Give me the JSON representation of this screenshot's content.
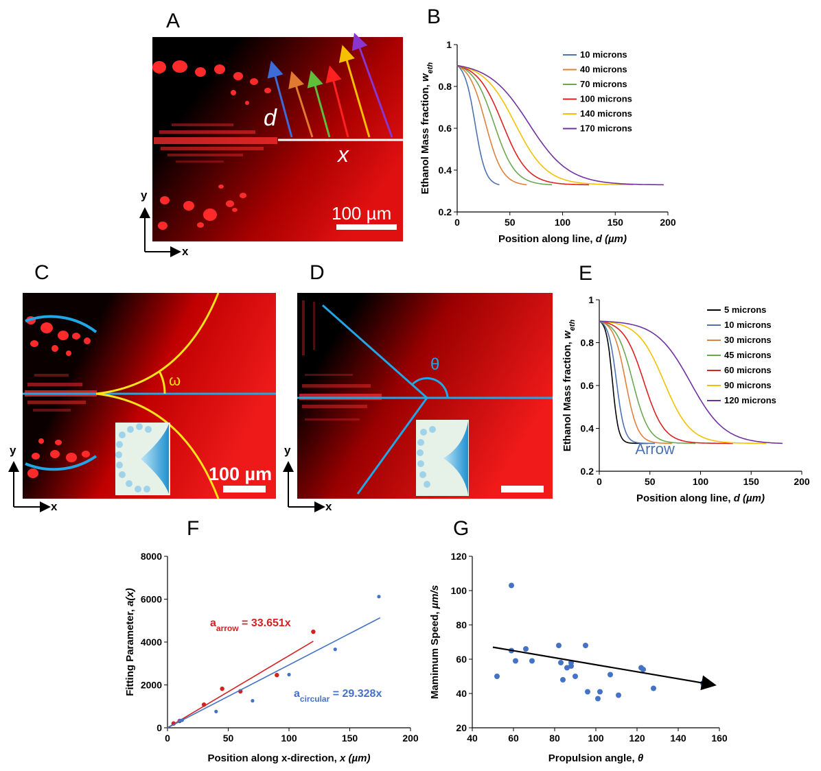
{
  "panels": {
    "A": "A",
    "B": "B",
    "C": "C",
    "D": "D",
    "E": "E",
    "F": "F",
    "G": "G"
  },
  "micro": {
    "scalebar_label_a": "100 µm",
    "scalebar_label_c": "100 µm",
    "label_d": "d",
    "label_x": "x",
    "label_omega": "ω",
    "label_theta": "θ",
    "axis_x": "x",
    "axis_y": "y"
  },
  "colors": {
    "blue": "#4a72b0",
    "orange": "#e0803a",
    "green": "#6aa84f",
    "red": "#dd1f1f",
    "yellow": "#f2c200",
    "purple": "#7030a0",
    "black": "#000000",
    "cyan": "#22a6e6",
    "gold": "#ffe21a",
    "fit_red": "#d42020",
    "fit_blue": "#4472c4"
  },
  "chart_data": [
    {
      "id": "B",
      "type": "line",
      "title": "",
      "xlabel": "Position along line, d (µm)",
      "ylabel": "Ethanol Mass fraction, w_eth",
      "xlim": [
        0,
        200
      ],
      "ylim": [
        0.2,
        1
      ],
      "xticks": [
        0,
        50,
        100,
        150,
        200
      ],
      "yticks": [
        0.2,
        0.4,
        0.6,
        0.8,
        1
      ],
      "ytick_labels": [
        "0.2",
        "0.4",
        "0.6",
        "0.8",
        "1"
      ],
      "legend_position": "top-right",
      "series": [
        {
          "name": "10 microns",
          "color": "#4a72b0",
          "mid": 17,
          "width": 5,
          "end": 40
        },
        {
          "name": "40 microns",
          "color": "#e0803a",
          "mid": 27,
          "width": 8,
          "end": 66
        },
        {
          "name": "70 microns",
          "color": "#6aa84f",
          "mid": 35,
          "width": 10,
          "end": 90
        },
        {
          "name": "100 microns",
          "color": "#dd1f1f",
          "mid": 43,
          "width": 12,
          "end": 125
        },
        {
          "name": "140 microns",
          "color": "#f2c200",
          "mid": 55,
          "width": 15,
          "end": 167
        },
        {
          "name": "170 microns",
          "color": "#7030a0",
          "mid": 68,
          "width": 19,
          "end": 196
        }
      ],
      "y_start": 0.9,
      "y_end": 0.33
    },
    {
      "id": "E",
      "type": "line",
      "title": "",
      "xlabel": "Position along line, d (µm)",
      "ylabel": "Ethanol Mass fraction, w_eth",
      "xlim": [
        0,
        200
      ],
      "ylim": [
        0.2,
        1
      ],
      "xticks": [
        0,
        50,
        100,
        150,
        200
      ],
      "yticks": [
        0.2,
        0.4,
        0.6,
        0.8,
        1
      ],
      "ytick_labels": [
        "0.2",
        "0.4",
        "0.6",
        "0.8",
        "1"
      ],
      "legend_position": "top-right",
      "annotation": "Arrow",
      "series": [
        {
          "name": "5 microns",
          "color": "#000000",
          "mid": 13,
          "width": 3,
          "end": 48
        },
        {
          "name": "10 microns",
          "color": "#4a72b0",
          "mid": 17,
          "width": 4,
          "end": 55
        },
        {
          "name": "30 microns",
          "color": "#e0803a",
          "mid": 26,
          "width": 6,
          "end": 72
        },
        {
          "name": "45 microns",
          "color": "#6aa84f",
          "mid": 33,
          "width": 8,
          "end": 95
        },
        {
          "name": "60 microns",
          "color": "#dd1f1f",
          "mid": 44,
          "width": 10,
          "end": 132
        },
        {
          "name": "90 microns",
          "color": "#f2c200",
          "mid": 64,
          "width": 13,
          "end": 165
        },
        {
          "name": "120 microns",
          "color": "#7030a0",
          "mid": 90,
          "width": 17,
          "end": 181
        }
      ],
      "y_start": 0.9,
      "y_end": 0.33
    },
    {
      "id": "F",
      "type": "scatter",
      "title": "",
      "xlabel": "Position along x-direction, x (µm)",
      "ylabel": "Fitting Parameter, a(x)",
      "xlim": [
        0,
        200
      ],
      "ylim": [
        0,
        8000
      ],
      "xticks": [
        0,
        50,
        100,
        150,
        200
      ],
      "yticks": [
        0,
        2000,
        4000,
        6000,
        8000
      ],
      "series": [
        {
          "name": "arrow",
          "color": "#d42020",
          "x": [
            5,
            10,
            30,
            45,
            60,
            90,
            120
          ],
          "y": [
            200,
            320,
            1080,
            1820,
            1700,
            2460,
            4480
          ],
          "fit_slope": 33.651,
          "fit_xmax": 120
        },
        {
          "name": "circular",
          "color": "#4472c4",
          "x": [
            10,
            12,
            40,
            70,
            100,
            138,
            174
          ],
          "y": [
            330,
            350,
            760,
            1260,
            2480,
            3660,
            6120
          ],
          "fit_slope": 29.328,
          "fit_xmax": 175
        }
      ],
      "annotations": [
        {
          "label_base": "a",
          "label_sub": "arrow",
          "label_eq": " = 33.651x",
          "color": "#d42020"
        },
        {
          "label_base": "a",
          "label_sub": "circular",
          "label_eq": " = 29.328x",
          "color": "#4472c4"
        }
      ]
    },
    {
      "id": "G",
      "type": "scatter",
      "title": "",
      "xlabel": "Propulsion angle, θ",
      "ylabel": "Mamimum Speed, µm/s",
      "xlim": [
        40,
        160
      ],
      "ylim": [
        20,
        120
      ],
      "xticks": [
        40,
        60,
        80,
        100,
        120,
        140,
        160
      ],
      "yticks": [
        20,
        40,
        60,
        80,
        100,
        120
      ],
      "series": [
        {
          "name": "speed",
          "color": "#4472c4",
          "x": [
            52,
            59,
            59,
            61,
            66,
            69,
            82,
            83,
            84,
            86,
            88,
            88,
            90,
            95,
            96,
            101,
            102,
            107,
            111,
            122,
            123,
            128,
            152
          ],
          "y": [
            50,
            103,
            65,
            59,
            66,
            59,
            68,
            58,
            48,
            55,
            56,
            58,
            50,
            68,
            41,
            37,
            41,
            51,
            39,
            55,
            54,
            43,
            46
          ]
        }
      ],
      "trend": {
        "x": [
          50,
          155
        ],
        "y": [
          67,
          45.5
        ],
        "color": "#000000"
      }
    }
  ]
}
